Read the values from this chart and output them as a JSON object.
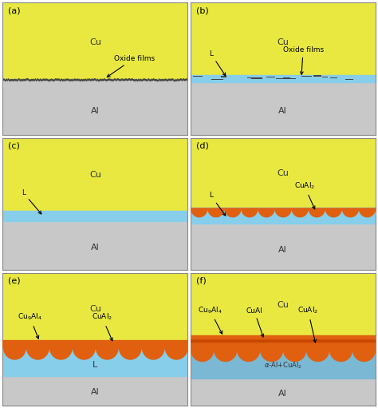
{
  "panels": [
    "(a)",
    "(b)",
    "(c)",
    "(d)",
    "(e)",
    "(f)"
  ],
  "cu_color": "#e8e840",
  "al_color": "#c8c8c8",
  "liquid_color": "#87ceeb",
  "liquid_color_f": "#7ab8d4",
  "oxide_color": "#444444",
  "orange_color": "#e06010",
  "background_color": "#ffffff",
  "border_color": "#888888",
  "cu_label": "Cu",
  "al_label": "Al",
  "panel_label_fontsize": 8,
  "body_label_fontsize": 8,
  "annot_fontsize": 6.5
}
